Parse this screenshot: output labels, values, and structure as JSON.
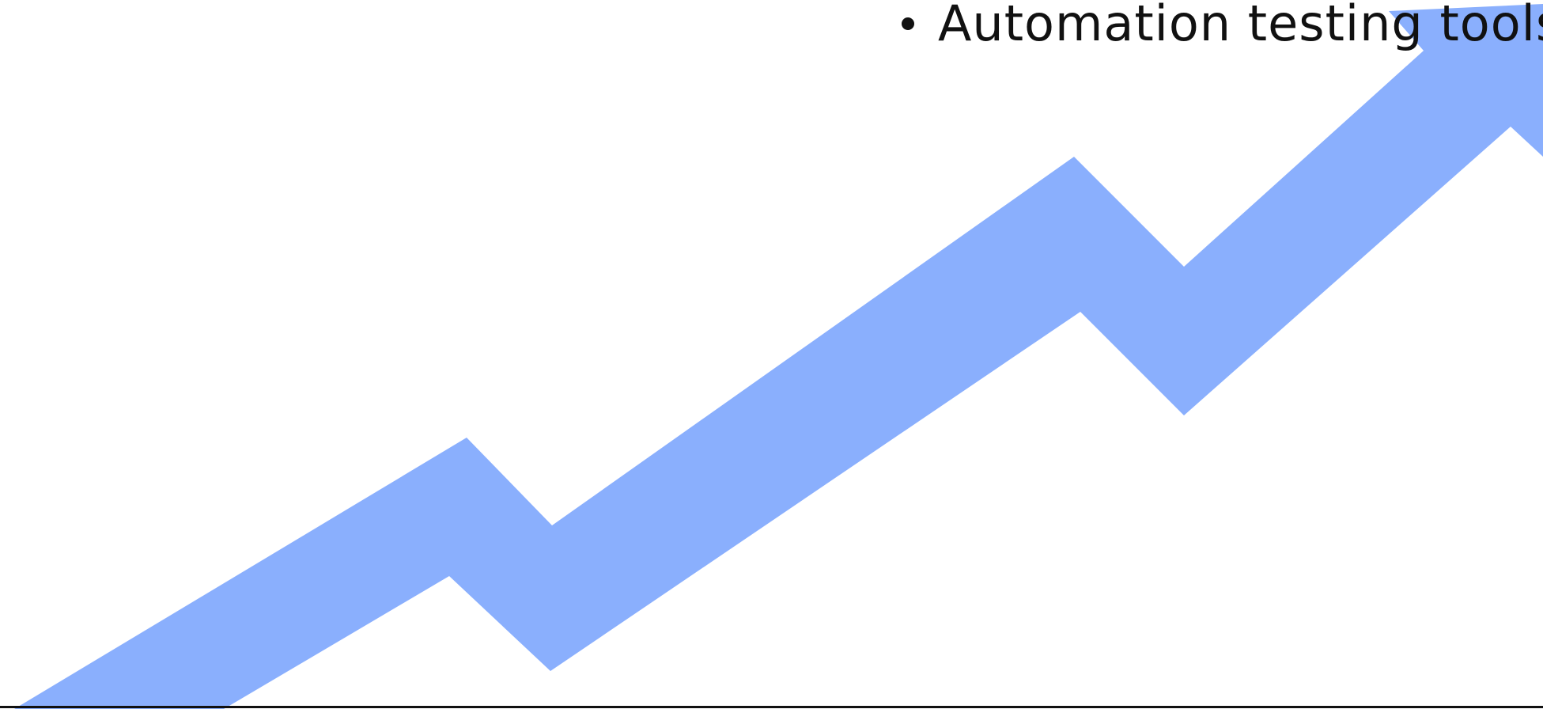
{
  "slide": {
    "bullets": [
      {
        "text": "Automation testing tools"
      }
    ],
    "colors": {
      "background": "#ffffff",
      "text": "#111111",
      "arrow": "#8aaffd",
      "rule": "#111111"
    },
    "graphic": {
      "name": "upward-trend-arrow",
      "icon": "trend-up-arrow-icon"
    }
  }
}
